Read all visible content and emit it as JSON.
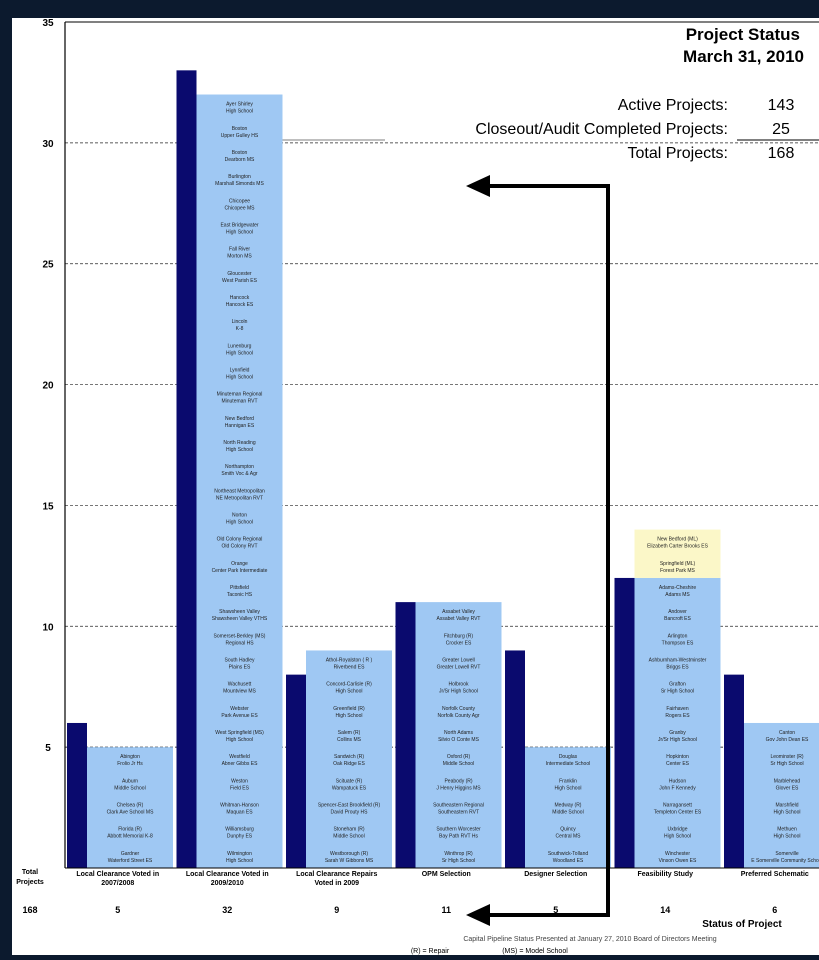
{
  "header": {
    "title": "Project Status",
    "date": "March 31, 2010",
    "summary": [
      {
        "label": "Active Projects:",
        "value": "143"
      },
      {
        "label": "Closeout/Audit Completed Projects:",
        "value": "25"
      },
      {
        "label": "Total Projects:",
        "value": "168"
      }
    ]
  },
  "footer": {
    "total_label_line1": "Total",
    "total_label_line2": "Projects",
    "grand_total": "168",
    "xlabel": "Status of Project",
    "caption": "Capital Pipeline Status Presented at January 27, 2010 Board of Directors Meeting",
    "legend_repair": "(R) = Repair",
    "legend_model": "(MS) = Model School"
  },
  "chart_data": {
    "type": "bar",
    "ylim": [
      0,
      35
    ],
    "yticks": [
      5,
      10,
      15,
      20,
      25,
      30,
      35
    ],
    "grid": true,
    "series": [
      {
        "values": [
          6,
          33,
          8,
          11,
          9,
          12,
          8
        ]
      },
      {
        "values": [
          5,
          32,
          9,
          11,
          5,
          14,
          6
        ]
      }
    ],
    "colors": {
      "dark": "#0a0a6e",
      "light": "#9fc8f3",
      "highlight": "#fbf7c8"
    },
    "categories": [
      {
        "label": [
          "Local Clearance Voted in",
          "2007/2008"
        ],
        "total": "5",
        "dark": 6,
        "light": 5,
        "highlight": 0,
        "items": [
          [
            "Abington",
            "Frolio Jr Hs"
          ],
          [
            "Auburn",
            "Middle School"
          ],
          [
            "Chelsea (R)",
            "Clark Ave School MS"
          ],
          [
            "Florida (R)",
            "Abbott Memorial K-8"
          ],
          [
            "Gardner",
            "Waterford Street ES"
          ]
        ]
      },
      {
        "label": [
          "Local Clearance Voted in",
          "2009/2010"
        ],
        "total": "32",
        "dark": 33,
        "light": 32,
        "highlight": 0,
        "items": [
          [
            "Ayer Shirley",
            "High School"
          ],
          [
            "Boston",
            "Upper Gulley HS"
          ],
          [
            "Boston",
            "Dearborn MS"
          ],
          [
            "Burlington",
            "Marshall Simonds MS"
          ],
          [
            "Chicopee",
            "Chicopee MS"
          ],
          [
            "East Bridgewater",
            "High School"
          ],
          [
            "Fall River",
            "Morton MS"
          ],
          [
            "Gloucester",
            "West Parish ES"
          ],
          [
            "Hancock",
            "Hancock ES"
          ],
          [
            "Lincoln",
            "K-8"
          ],
          [
            "Lunenburg",
            "High School"
          ],
          [
            "Lynnfield",
            "High School"
          ],
          [
            "Minuteman Regional",
            "Minuteman RVT"
          ],
          [
            "New Bedford",
            "Hannigan ES"
          ],
          [
            "North Reading",
            "High School"
          ],
          [
            "Northampton",
            "Smith Voc & Agr"
          ],
          [
            "Northeast Metropolitan",
            "NE Metropolitan RVT"
          ],
          [
            "Norton",
            "High School"
          ],
          [
            "Old Colony Regional",
            "Old Colony RVT"
          ],
          [
            "Orange",
            "Center Park Intermediate"
          ],
          [
            "Pittsfield",
            "Taconic HS"
          ],
          [
            "Shawsheen Valley",
            "Shawsheen Valley VTHS"
          ],
          [
            "Somerset-Berkley (MS)",
            "Regional HS"
          ],
          [
            "South Hadley",
            "Plains ES"
          ],
          [
            "Wachusett",
            "Mountview MS"
          ],
          [
            "Webster",
            "Park Avenue ES"
          ],
          [
            "West Springfield (MS)",
            "High School"
          ],
          [
            "Westfield",
            "Abner Gibbs ES"
          ],
          [
            "Weston",
            "Field ES"
          ],
          [
            "Whitman-Hanson",
            "Maquan ES"
          ],
          [
            "Williamsburg",
            "Dunphy ES"
          ],
          [
            "Wilmington",
            "High School"
          ]
        ]
      },
      {
        "label": [
          "Local Clearance Repairs",
          "Voted in 2009"
        ],
        "total": "9",
        "dark": 8,
        "light": 9,
        "highlight": 0,
        "items": [
          [
            "Athol-Royalston ( R )",
            "Riverbend ES"
          ],
          [
            "Concord-Carlisle (R)",
            "High School"
          ],
          [
            "Greenfield (R)",
            "High School"
          ],
          [
            "Salem (R)",
            "Collins MS"
          ],
          [
            "Sandwich (R)",
            "Oak Ridge ES"
          ],
          [
            "Scituate (R)",
            "Wampatuck ES"
          ],
          [
            "Spencer-East Brookfield (R)",
            "David Prouty HS"
          ],
          [
            "Stoneham (R)",
            "Middle School"
          ],
          [
            "Westborough (R)",
            "Sarah W Gibbons MS"
          ]
        ]
      },
      {
        "label": [
          "OPM Selection"
        ],
        "total": "11",
        "dark": 11,
        "light": 11,
        "highlight": 0,
        "items": [
          [
            "Assabet Valley",
            "Assabet Valley RVT"
          ],
          [
            "Fitchburg (R)",
            "Crocker ES"
          ],
          [
            "Greater Lowell",
            "Greater Lowell RVT"
          ],
          [
            "Holbrook",
            "Jr/Sr High School"
          ],
          [
            "Norfolk County",
            "Norfolk County Agr"
          ],
          [
            "North Adams",
            "Silvio O Conte MS"
          ],
          [
            "Oxford (R)",
            "Middle School"
          ],
          [
            "Peabody (R)",
            "J Henry Higgins MS"
          ],
          [
            "Southeastern Regional",
            "Southeastern RVT"
          ],
          [
            "Southern Worcester",
            "Bay Path RVT Hs"
          ],
          [
            "Winthrop (R)",
            "Sr High School"
          ]
        ]
      },
      {
        "label": [
          "Designer Selection"
        ],
        "total": "5",
        "dark": 9,
        "light": 5,
        "highlight": 0,
        "items": [
          [
            "Douglas",
            "Intermediate School"
          ],
          [
            "Franklin",
            "High School"
          ],
          [
            "Medway (R)",
            "Middle School"
          ],
          [
            "Quincy",
            "Central MS"
          ],
          [
            "Southwick-Tolland",
            "Woodland ES"
          ]
        ]
      },
      {
        "label": [
          "Feasibility Study"
        ],
        "total": "14",
        "dark": 12,
        "light": 12,
        "highlight": 2,
        "items": [
          [
            "New Bedford (ML)",
            "Elizabeth Carter Brooks ES"
          ],
          [
            "Springfield (ML)",
            "Forest Park MS"
          ],
          [
            "Adams-Cheshire",
            "Adams MS"
          ],
          [
            "Andover",
            "Bancroft ES"
          ],
          [
            "Arlington",
            "Thompson ES"
          ],
          [
            "Ashburnham-Westminster",
            "Briggs ES"
          ],
          [
            "Grafton",
            "Sr High School"
          ],
          [
            "Fairhaven",
            "Rogers ES"
          ],
          [
            "Granby",
            "Jr/Sr High School"
          ],
          [
            "Hopkinton",
            "Center ES"
          ],
          [
            "Hudson",
            "John F Kennedy"
          ],
          [
            "Narragansett",
            "Templeton Center ES"
          ],
          [
            "Uxbridge",
            "High School"
          ],
          [
            "Winchester",
            "Vinson Owen ES"
          ]
        ]
      },
      {
        "label": [
          "Preferred Schematic"
        ],
        "total": "6",
        "dark": 8,
        "light": 6,
        "highlight": 0,
        "items": [
          [
            "Canton",
            "Gov John Dean ES"
          ],
          [
            "Leominster (R)",
            "Sr High School"
          ],
          [
            "Marblehead",
            "Glover ES"
          ],
          [
            "Marshfield",
            "High School"
          ],
          [
            "Methuen",
            "High School"
          ],
          [
            "Somerville",
            "E Somerville Community School"
          ]
        ]
      }
    ]
  }
}
